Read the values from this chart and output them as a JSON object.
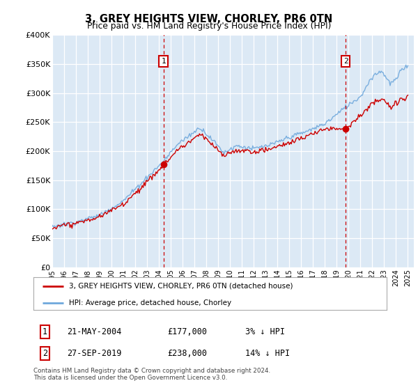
{
  "title": "3, GREY HEIGHTS VIEW, CHORLEY, PR6 0TN",
  "subtitle": "Price paid vs. HM Land Registry's House Price Index (HPI)",
  "plot_bg_color": "#dce9f5",
  "ylim": [
    0,
    400000
  ],
  "yticks": [
    0,
    50000,
    100000,
    150000,
    200000,
    250000,
    300000,
    350000,
    400000
  ],
  "ytick_labels": [
    "£0",
    "£50K",
    "£100K",
    "£150K",
    "£200K",
    "£250K",
    "£300K",
    "£350K",
    "£400K"
  ],
  "sale1_x": 2004.38,
  "sale1_price": 177000,
  "sale2_x": 2019.75,
  "sale2_price": 238000,
  "hpi_color": "#6fa8dc",
  "price_color": "#cc0000",
  "legend_label1": "3, GREY HEIGHTS VIEW, CHORLEY, PR6 0TN (detached house)",
  "legend_label2": "HPI: Average price, detached house, Chorley",
  "footnote": "Contains HM Land Registry data © Crown copyright and database right 2024.\nThis data is licensed under the Open Government Licence v3.0."
}
